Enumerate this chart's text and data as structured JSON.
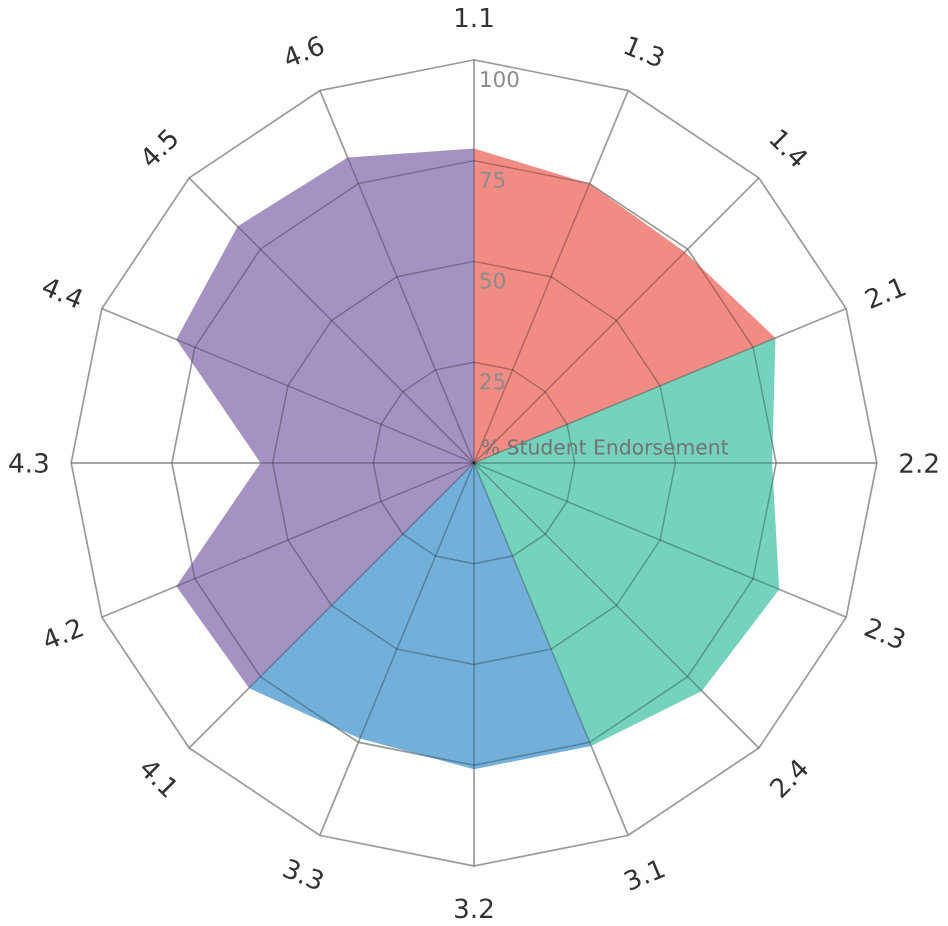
{
  "chart_data": {
    "type": "radar",
    "ylabel": "% Student Endorsement",
    "categories": [
      "1.1",
      "1.3",
      "1.4",
      "2.1",
      "2.2",
      "2.3",
      "2.4",
      "3.1",
      "3.2",
      "3.3",
      "4.1",
      "4.2",
      "4.3",
      "4.4",
      "4.5",
      "4.6"
    ],
    "ylim": [
      0,
      100
    ],
    "yticks": [
      25,
      50,
      75,
      100
    ],
    "series": [
      {
        "color": "#f07f78",
        "values": [
          78,
          75,
          74,
          81,
          null,
          null,
          null,
          null,
          null,
          null,
          null,
          null,
          null,
          null,
          null,
          null
        ]
      },
      {
        "color": "#66cdb5",
        "values": [
          null,
          null,
          null,
          81,
          74,
          82,
          80,
          76,
          null,
          null,
          null,
          null,
          null,
          null,
          null,
          null
        ]
      },
      {
        "color": "#64a7d5",
        "values": [
          null,
          null,
          null,
          null,
          null,
          null,
          null,
          76,
          76,
          74,
          79,
          null,
          null,
          null,
          null,
          null
        ]
      },
      {
        "color": "#9a86bd",
        "values": [
          78,
          null,
          null,
          null,
          null,
          null,
          null,
          null,
          null,
          null,
          79,
          80,
          53,
          80,
          83,
          82
        ]
      }
    ]
  }
}
